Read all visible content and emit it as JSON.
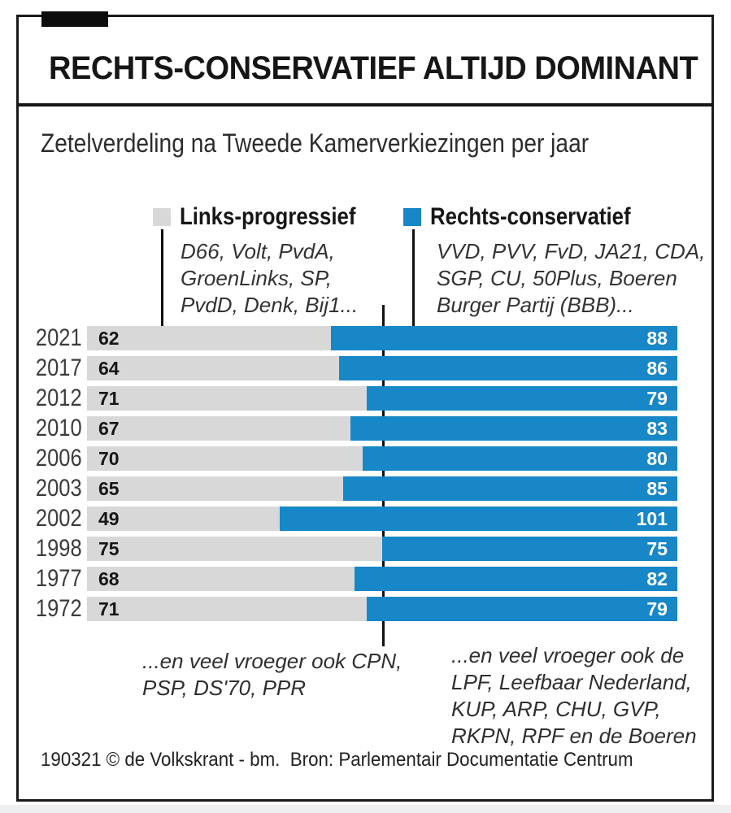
{
  "header": {
    "title": "RECHTS-CONSERVATIEF ALTIJD DOMINANT",
    "subtitle": "Zetelverdeling na Tweede Kamerverkiezingen per jaar"
  },
  "legend": {
    "left": {
      "label": "Links-progressief",
      "color": "#d8d8d8",
      "parties": [
        "D66, Volt, PvdA,",
        "GroenLinks, SP,",
        "PvdD, Denk, Bij1..."
      ]
    },
    "right": {
      "label": "Rechts-conservatief",
      "color": "#1787c7",
      "parties": [
        "VVD, PVV, FvD, JA21, CDA,",
        "SGP, CU, 50Plus, Boeren",
        "Burger Partij (BBB)..."
      ]
    }
  },
  "chart_data": {
    "type": "bar",
    "orientation": "horizontal-stacked",
    "title": "RECHTS-CONSERVATIEF ALTIJD DOMINANT",
    "subtitle": "Zetelverdeling na Tweede Kamerverkiezingen per jaar",
    "categories": [
      "2021",
      "2017",
      "2012",
      "2010",
      "2006",
      "2003",
      "2002",
      "1998",
      "1977",
      "1972"
    ],
    "series": [
      {
        "name": "Links-progressief",
        "color": "#d8d8d8",
        "values": [
          62,
          64,
          71,
          67,
          70,
          65,
          49,
          75,
          68,
          71
        ]
      },
      {
        "name": "Rechts-conservatief",
        "color": "#1787c7",
        "values": [
          88,
          86,
          79,
          83,
          80,
          85,
          101,
          75,
          82,
          79
        ]
      }
    ],
    "total_seats": 150,
    "majority_line_at": 75,
    "legend_position": "top"
  },
  "footnotes": {
    "left": [
      "...en veel vroeger ook CPN,",
      "PSP, DS'70, PPR"
    ],
    "right": [
      "...en veel vroeger ook de",
      "LPF, Leefbaar Nederland,",
      "KUP, ARP, CHU, GVP,",
      "RKPN, RPF en de Boeren"
    ]
  },
  "credit": "190321 © de Volkskrant - bm.  Bron: Parlementair Documentatie Centrum"
}
